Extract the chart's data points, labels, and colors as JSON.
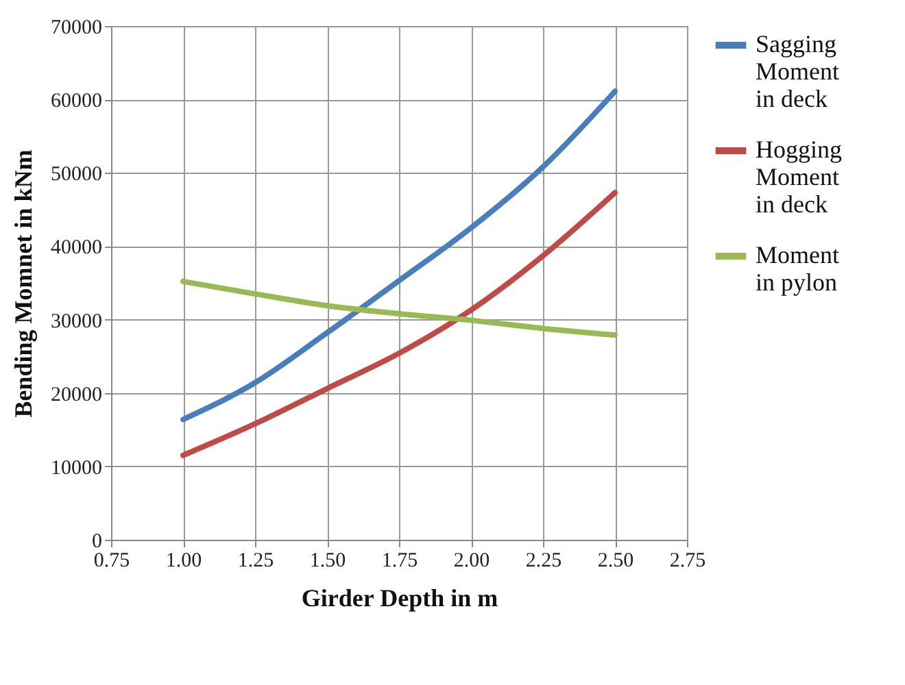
{
  "chart_data": {
    "type": "line",
    "xlabel": "Girder Depth in m",
    "ylabel": "Bending Momnet in kNm",
    "x": [
      1.0,
      1.25,
      1.5,
      1.75,
      2.0,
      2.25,
      2.5
    ],
    "series": [
      {
        "name": "Sagging Moment in deck",
        "color": "#4a7ebb",
        "values": [
          16400,
          21400,
          28200,
          35300,
          42500,
          50800,
          61100
        ]
      },
      {
        "name": "Hogging Moment in deck",
        "color": "#be4b48",
        "values": [
          11500,
          15800,
          20600,
          25400,
          31300,
          38700,
          47300
        ]
      },
      {
        "name": "Moment in pylon",
        "color": "#98b954",
        "values": [
          35200,
          33500,
          31900,
          30800,
          29900,
          28800,
          27900
        ]
      }
    ],
    "xlim": [
      0.75,
      2.75
    ],
    "xticks": [
      {
        "value": 0.75,
        "label": "0.75"
      },
      {
        "value": 1.0,
        "label": "1.00"
      },
      {
        "value": 1.25,
        "label": "1.25"
      },
      {
        "value": 1.5,
        "label": "1.50"
      },
      {
        "value": 1.75,
        "label": "1.75"
      },
      {
        "value": 2.0,
        "label": "2.00"
      },
      {
        "value": 2.25,
        "label": "2.25"
      },
      {
        "value": 2.5,
        "label": "2.50"
      },
      {
        "value": 2.75,
        "label": "2.75"
      }
    ],
    "ylim": [
      0,
      70000
    ],
    "yticks": [
      0,
      10000,
      20000,
      30000,
      40000,
      50000,
      60000,
      70000
    ],
    "grid": true,
    "legend": "right",
    "marker": "none",
    "line_style": "solid"
  }
}
